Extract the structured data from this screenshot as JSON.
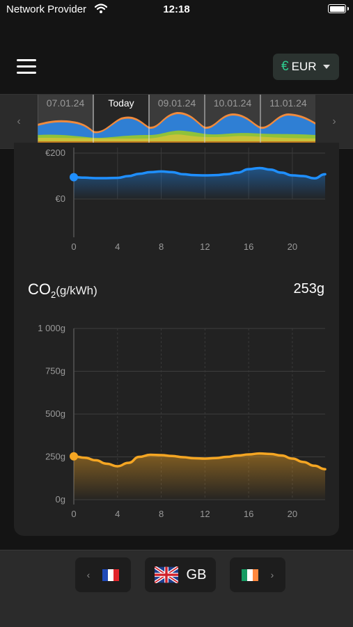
{
  "status_bar": {
    "carrier": "Network Provider",
    "time": "12:18"
  },
  "header": {
    "currency_symbol": "€",
    "currency_code": "EUR"
  },
  "timeline": {
    "prev_icon": "chevron-left-icon",
    "next_icon": "chevron-right-icon",
    "days": [
      {
        "label": "07.01.24",
        "active": false
      },
      {
        "label": "Today",
        "active": true
      },
      {
        "label": "09.01.24",
        "active": false
      },
      {
        "label": "10.01.24",
        "active": false
      },
      {
        "label": "11.01.24",
        "active": false
      }
    ]
  },
  "price_chart": {
    "y_ticks": [
      "€200",
      "€0"
    ],
    "x_ticks": [
      "0",
      "4",
      "8",
      "12",
      "16",
      "20"
    ]
  },
  "co2": {
    "title_main": "CO",
    "title_sub": "2",
    "title_unit": "(g/kWh)",
    "current_value": "253g"
  },
  "chart_data": [
    {
      "type": "line",
      "title": "",
      "xlabel": "",
      "ylabel": "",
      "x": [
        0,
        1,
        2,
        3,
        4,
        5,
        6,
        7,
        8,
        9,
        10,
        11,
        12,
        13,
        14,
        15,
        16,
        17,
        18,
        19,
        20,
        21,
        22,
        23
      ],
      "series": [
        {
          "values": [
            95,
            93,
            91,
            91,
            92,
            100,
            110,
            117,
            120,
            117,
            108,
            104,
            103,
            104,
            108,
            115,
            130,
            135,
            128,
            115,
            103,
            100,
            90,
            108
          ]
        }
      ],
      "x_ticks": [
        0,
        4,
        8,
        12,
        16,
        20
      ],
      "y_ticks": [
        "€200",
        "€0"
      ],
      "xlim": [
        0,
        23
      ],
      "ylim": [
        0,
        200
      ],
      "color": "#1f8fff"
    },
    {
      "type": "line",
      "title": "",
      "xlabel": "",
      "ylabel": "",
      "x": [
        0,
        1,
        2,
        3,
        4,
        5,
        6,
        7,
        8,
        9,
        10,
        11,
        12,
        13,
        14,
        15,
        16,
        17,
        18,
        19,
        20,
        21,
        22,
        23
      ],
      "series": [
        {
          "values": [
            253,
            245,
            230,
            210,
            195,
            215,
            250,
            262,
            260,
            255,
            248,
            242,
            240,
            243,
            250,
            258,
            264,
            270,
            267,
            258,
            240,
            220,
            198,
            178
          ]
        }
      ],
      "x_ticks": [
        0,
        4,
        8,
        12,
        16,
        20
      ],
      "y_ticks": [
        "1 000g",
        "750g",
        "500g",
        "250g",
        "0g"
      ],
      "xlim": [
        0,
        23
      ],
      "ylim": [
        0,
        1000
      ],
      "color": "#f5a623"
    }
  ],
  "footer": {
    "prev_country_flag": "france-flag-icon",
    "current_country_code": "GB",
    "current_country_flag": "uk-flag-icon",
    "next_country_flag": "ireland-flag-icon"
  }
}
